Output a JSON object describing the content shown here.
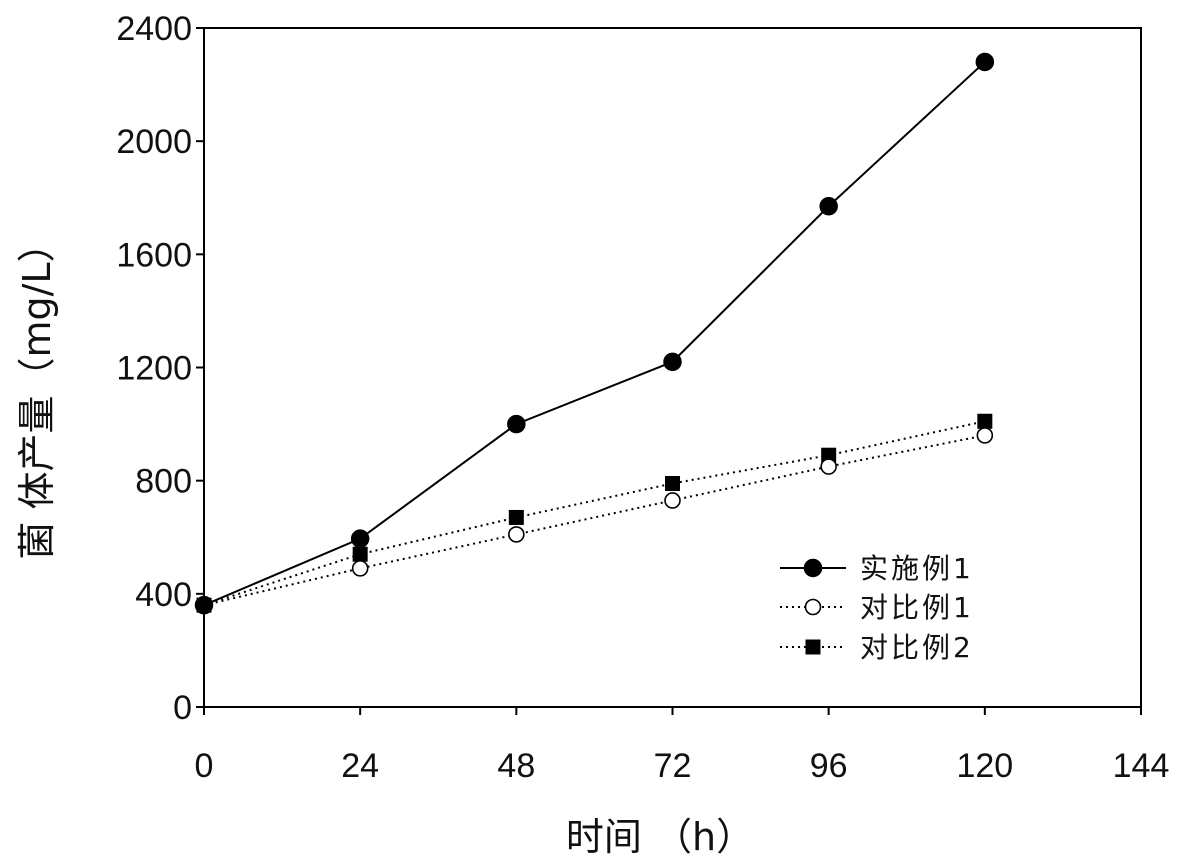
{
  "chart_data": {
    "type": "line",
    "title": "",
    "xlabel": "时间 （h）",
    "ylabel": "菌 体产量（mg/L）",
    "xlim": [
      0,
      144
    ],
    "ylim": [
      0,
      2400
    ],
    "xticks": [
      0,
      24,
      48,
      72,
      96,
      120,
      144
    ],
    "yticks": [
      0,
      400,
      800,
      1200,
      1600,
      2000,
      2400
    ],
    "grid": false,
    "legend": "lower-right",
    "x": [
      0,
      24,
      48,
      72,
      96,
      120
    ],
    "series": [
      {
        "name": "实施例1",
        "values": [
          360,
          595,
          1000,
          1220,
          1770,
          2280
        ],
        "marker": "filled-circle",
        "line": "solid",
        "color": "#000000"
      },
      {
        "name": "对比例1",
        "values": [
          360,
          490,
          610,
          730,
          850,
          960
        ],
        "marker": "open-circle",
        "line": "dotted",
        "color": "#000000"
      },
      {
        "name": "对比例2",
        "values": [
          360,
          540,
          670,
          790,
          890,
          1010
        ],
        "marker": "filled-square",
        "line": "dotted",
        "color": "#000000"
      }
    ]
  }
}
